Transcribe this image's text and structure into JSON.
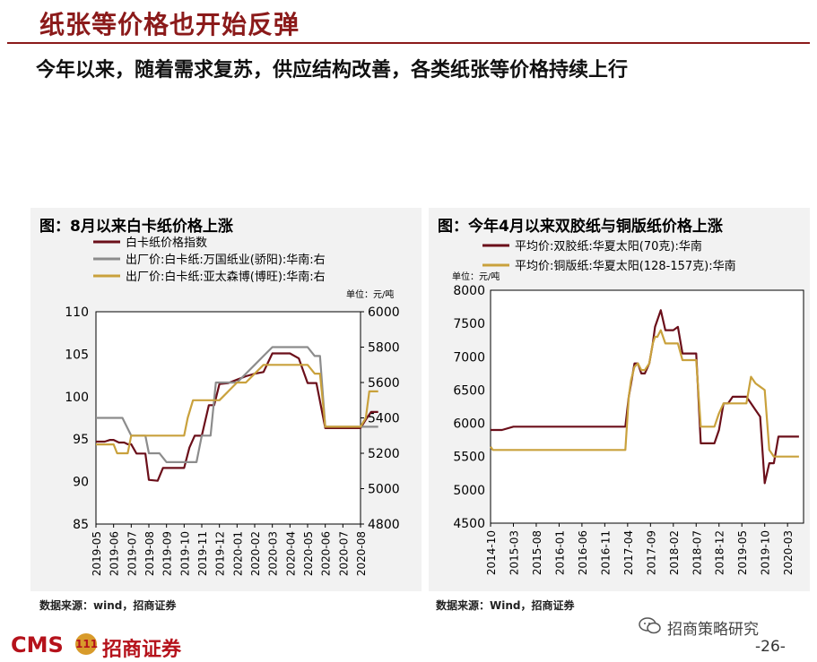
{
  "title": "纸张等价格也开始反弹",
  "subtitle": "今年以来，随着需求复苏，供应结构改善，各类纸张等价格持续上行",
  "footer": {
    "brand": "CMS",
    "badge": "111",
    "company": "招商证券",
    "wechat": "招商策略研究",
    "page": "-26-"
  },
  "chart_data": [
    {
      "type": "line",
      "title": "图：8月以来白卡纸价格上涨",
      "unit_label": "单位：元/吨",
      "source": "数据来源：wind，招商证券",
      "x": [
        "2019-05",
        "2019-06",
        "2019-07",
        "2019-08",
        "2019-09",
        "2019-10",
        "2019-11",
        "2019-12",
        "2020-01",
        "2020-02",
        "2020-03",
        "2020-04",
        "2020-05",
        "2020-06",
        "2020-07",
        "2020-08"
      ],
      "left_axis": {
        "ylim": [
          85,
          110
        ],
        "ticks": [
          "110",
          "105",
          "100",
          "95",
          "90",
          "85"
        ]
      },
      "right_axis": {
        "ylim": [
          4800,
          6000
        ],
        "ticks": [
          "6000",
          "5800",
          "5600",
          "5400",
          "5200",
          "5000",
          "4800"
        ]
      },
      "series": [
        {
          "name": "白卡纸价格指数",
          "color": "#6b0f1a",
          "axis": "left",
          "x": [
            0,
            0.3,
            0.5,
            0.8,
            1,
            1.3,
            1.6,
            1.8,
            2,
            2.3,
            2.6,
            2.8,
            3,
            3.5,
            3.8,
            4,
            4.4,
            4.8,
            5,
            5.3,
            5.6,
            5.8,
            6,
            6.4,
            6.7,
            7,
            7.5,
            8,
            8.5,
            9,
            9.5,
            10,
            10.5,
            11,
            11.5,
            12,
            12.5,
            13,
            13.5,
            14,
            14.5,
            15,
            15.3,
            15.6,
            15.8,
            16
          ],
          "y": [
            94.7,
            94.7,
            94.7,
            94.9,
            94.9,
            94.6,
            94.6,
            94.4,
            94.4,
            93.3,
            93.3,
            93.3,
            90.2,
            90.1,
            91.6,
            91.6,
            91.6,
            91.6,
            91.6,
            94.0,
            95.4,
            95.4,
            95.4,
            99.0,
            99.0,
            101.5,
            101.6,
            102.0,
            102.4,
            102.7,
            102.9,
            105.1,
            105.1,
            105.1,
            104.5,
            101.6,
            101.6,
            96.3,
            96.3,
            96.3,
            96.3,
            96.3,
            97.3,
            98.2,
            98.2,
            98.2
          ]
        },
        {
          "name": "出厂价:白卡纸:万国纸业(骄阳):华南:右",
          "color": "#8c8c8c",
          "axis": "right",
          "x": [
            0,
            1,
            1.5,
            2,
            2.2,
            2.5,
            2.8,
            3,
            3.3,
            3.6,
            4,
            4.3,
            4.6,
            5,
            5.4,
            5.7,
            6,
            6.5,
            6.8,
            7,
            7.3,
            7.6,
            8,
            8.5,
            9,
            9.5,
            10,
            10.5,
            11,
            11.5,
            11.7,
            12,
            12.4,
            12.7,
            13,
            13.3,
            13.7,
            14,
            14.3,
            14.6,
            15,
            15.2,
            15.6,
            16
          ],
          "y": [
            5400,
            5400,
            5400,
            5300,
            5300,
            5300,
            5300,
            5200,
            5200,
            5200,
            5150,
            5150,
            5150,
            5150,
            5150,
            5150,
            5300,
            5300,
            5600,
            5600,
            5600,
            5600,
            5600,
            5650,
            5700,
            5750,
            5800,
            5800,
            5800,
            5800,
            5800,
            5800,
            5750,
            5750,
            5350,
            5350,
            5350,
            5350,
            5350,
            5350,
            5350,
            5350,
            5350,
            5350
          ]
        },
        {
          "name": "出厂价:白卡纸:亚太森博(博旺):华南:右",
          "color": "#c9a13c",
          "axis": "right",
          "x": [
            0,
            1,
            1.2,
            1.5,
            1.8,
            2,
            2.3,
            2.5,
            3,
            4,
            5,
            5.2,
            5.5,
            6,
            6.5,
            7,
            7.5,
            8,
            8.5,
            9,
            9.5,
            10,
            10.5,
            11,
            11.5,
            12,
            12.4,
            12.7,
            13,
            14,
            14.5,
            15,
            15.3,
            15.5,
            16
          ],
          "y": [
            5250,
            5250,
            5200,
            5200,
            5200,
            5300,
            5300,
            5300,
            5300,
            5300,
            5300,
            5400,
            5500,
            5500,
            5500,
            5500,
            5550,
            5600,
            5600,
            5650,
            5700,
            5700,
            5700,
            5700,
            5700,
            5700,
            5650,
            5650,
            5350,
            5350,
            5350,
            5350,
            5400,
            5550,
            5550
          ]
        }
      ]
    },
    {
      "type": "line",
      "title": "图：今年4月以来双胶纸与铜版纸价格上涨",
      "unit_label": "单位：元/吨",
      "source": "数据来源：Wind，招商证券",
      "x": [
        "2014-10",
        "2015-03",
        "2015-08",
        "2016-01",
        "2016-06",
        "2016-11",
        "2017-04",
        "2017-09",
        "2018-02",
        "2018-07",
        "2018-12",
        "2019-05",
        "2019-10",
        "2020-03"
      ],
      "ylim": [
        4500,
        8000
      ],
      "yticks": [
        "8000",
        "7500",
        "7000",
        "6500",
        "6000",
        "5500",
        "5000",
        "4500"
      ],
      "series": [
        {
          "name": "平均价:双胶纸:华夏太阳(70克):华南",
          "color": "#6b0f1a",
          "x": [
            0,
            0.3,
            0.5,
            1,
            2,
            3,
            4,
            5,
            5.3,
            5.5,
            5.7,
            5.9,
            6.05,
            6.15,
            6.3,
            6.45,
            6.6,
            6.75,
            6.95,
            7.1,
            7.2,
            7.3,
            7.45,
            7.65,
            7.8,
            8,
            8.2,
            8.4,
            8.6,
            8.8,
            9,
            9.2,
            9.4,
            9.6,
            9.8,
            10,
            10.2,
            10.4,
            10.6,
            10.8,
            11,
            11.2,
            11.4,
            11.6,
            11.8,
            12,
            12.2,
            12.4,
            12.6,
            12.8,
            12.9,
            13,
            13.1,
            13.2,
            13.3,
            13.4,
            13.5
          ],
          "y": [
            5900,
            5900,
            5900,
            5950,
            5950,
            5950,
            5950,
            5950,
            5950,
            5950,
            5950,
            5950,
            6400,
            6600,
            6900,
            6900,
            6750,
            6750,
            6900,
            7200,
            7450,
            7550,
            7700,
            7400,
            7400,
            7400,
            7450,
            7050,
            7050,
            7050,
            7050,
            5700,
            5700,
            5700,
            5700,
            5900,
            6300,
            6300,
            6400,
            6400,
            6400,
            6400,
            6300,
            6200,
            6100,
            5100,
            5400,
            5400,
            5800,
            5800,
            5800,
            5800,
            5800,
            5800,
            5800,
            5800,
            5800
          ]
        },
        {
          "name": "平均价:铜版纸:华夏太阳(128-157克):华南",
          "color": "#c9a13c",
          "x": [
            0,
            0.1,
            0.3,
            1,
            2,
            3,
            4,
            5,
            5.3,
            5.5,
            5.7,
            5.9,
            6.05,
            6.15,
            6.3,
            6.45,
            6.6,
            6.75,
            6.95,
            7.1,
            7.2,
            7.3,
            7.45,
            7.65,
            7.8,
            8,
            8.2,
            8.4,
            8.6,
            8.8,
            9,
            9.2,
            9.4,
            9.6,
            9.8,
            10,
            10.2,
            10.4,
            10.6,
            10.8,
            11,
            11.2,
            11.4,
            11.6,
            11.8,
            12,
            12.2,
            12.4,
            12.6,
            12.8,
            12.9,
            13,
            13.1,
            13.2,
            13.3,
            13.4,
            13.5
          ],
          "y": [
            5650,
            5600,
            5600,
            5600,
            5600,
            5600,
            5600,
            5600,
            5600,
            5600,
            5600,
            5600,
            6400,
            6650,
            6850,
            6900,
            6800,
            6800,
            6900,
            7200,
            7300,
            7300,
            7400,
            7200,
            7200,
            7200,
            7200,
            6950,
            6950,
            6950,
            6950,
            5950,
            5950,
            5950,
            5950,
            6150,
            6300,
            6300,
            6300,
            6300,
            6300,
            6300,
            6700,
            6600,
            6550,
            6500,
            5600,
            5500,
            5500,
            5500,
            5500,
            5500,
            5500,
            5500,
            5500,
            5500,
            5500
          ]
        }
      ]
    }
  ]
}
